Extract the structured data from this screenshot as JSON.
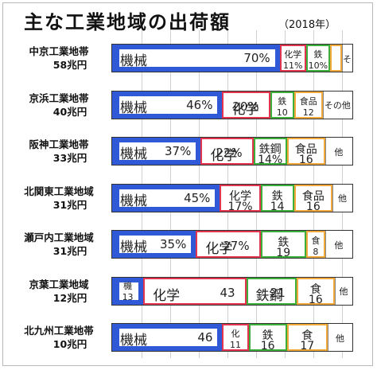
{
  "chart_data": {
    "type": "bar",
    "stacked": "percent",
    "orientation": "horizontal",
    "title": "主な工業地域の出荷額",
    "note": "（2018年）",
    "grid": true,
    "colors": {
      "機械": "#2f59d6",
      "化学": "#e3344f",
      "鉄鋼": "#3cae3c",
      "食品": "#f2a93b",
      "その他": "#ffffff"
    },
    "categories": [
      {
        "name": "中京工業地帯",
        "total": "58兆円"
      },
      {
        "name": "京浜工業地帯",
        "total": "40兆円"
      },
      {
        "name": "阪神工業地帯",
        "total": "33兆円"
      },
      {
        "name": "北関東工業地域",
        "total": "31兆円"
      },
      {
        "name": "瀬戸内工業地域",
        "total": "31兆円"
      },
      {
        "name": "京葉工業地域",
        "total": "12兆円"
      },
      {
        "name": "北九州工業地帯",
        "total": "10兆円"
      }
    ],
    "series": [
      {
        "name": "機械",
        "values": [
          70,
          46,
          37,
          45,
          35,
          13,
          46
        ]
      },
      {
        "name": "化学",
        "values": [
          11,
          20,
          22,
          17,
          27,
          43,
          11
        ]
      },
      {
        "name": "鉄鋼",
        "values": [
          10,
          10,
          14,
          14,
          19,
          21,
          16
        ]
      },
      {
        "name": "食品",
        "values": [
          5,
          12,
          16,
          16,
          8,
          16,
          17
        ]
      },
      {
        "name": "その他",
        "values": [
          4,
          12,
          11,
          8,
          11,
          7,
          10
        ]
      }
    ],
    "segment_labels": [
      [
        {
          "texts": [
            "機械",
            "70%"
          ]
        },
        {
          "texts": [
            "化学",
            "11%"
          ]
        },
        {
          "texts": [
            "鉄",
            "10%"
          ]
        },
        {
          "texts": []
        },
        {
          "texts": [
            "その他"
          ]
        }
      ],
      [
        {
          "texts": [
            "機械",
            "46%"
          ]
        },
        {
          "texts": [
            "化学",
            "20%"
          ]
        },
        {
          "texts": [
            "鉄",
            "10"
          ]
        },
        {
          "texts": [
            "食品",
            "12"
          ]
        },
        {
          "texts": [
            "その他"
          ]
        }
      ],
      [
        {
          "texts": [
            "機械",
            "37%"
          ]
        },
        {
          "texts": [
            "化学",
            "22%"
          ]
        },
        {
          "texts": [
            "鉄鋼",
            "14%"
          ]
        },
        {
          "texts": [
            "食品",
            "16"
          ]
        },
        {
          "texts": [
            "他"
          ]
        }
      ],
      [
        {
          "texts": [
            "機械",
            "45%"
          ]
        },
        {
          "texts": [
            "化学",
            "17%"
          ]
        },
        {
          "texts": [
            "鉄",
            "14"
          ]
        },
        {
          "texts": [
            "食品",
            "16"
          ]
        },
        {
          "texts": [
            "他"
          ]
        }
      ],
      [
        {
          "texts": [
            "機械",
            "35%"
          ]
        },
        {
          "texts": [
            "化学",
            "27%"
          ]
        },
        {
          "texts": [
            "鉄",
            "19"
          ]
        },
        {
          "texts": [
            "食",
            "8"
          ]
        },
        {
          "texts": [
            "他"
          ]
        }
      ],
      [
        {
          "texts": [
            "機",
            "13"
          ]
        },
        {
          "texts": [
            "化学",
            "43"
          ]
        },
        {
          "texts": [
            "鉄鋼",
            "21"
          ]
        },
        {
          "texts": [
            "食",
            "16"
          ]
        },
        {
          "texts": [
            "他"
          ]
        }
      ],
      [
        {
          "texts": [
            "機械",
            "46"
          ]
        },
        {
          "texts": [
            "化",
            "11"
          ]
        },
        {
          "texts": [
            "鉄",
            "16"
          ]
        },
        {
          "texts": [
            "食",
            "17"
          ]
        },
        {
          "texts": [
            "他"
          ]
        }
      ]
    ]
  }
}
